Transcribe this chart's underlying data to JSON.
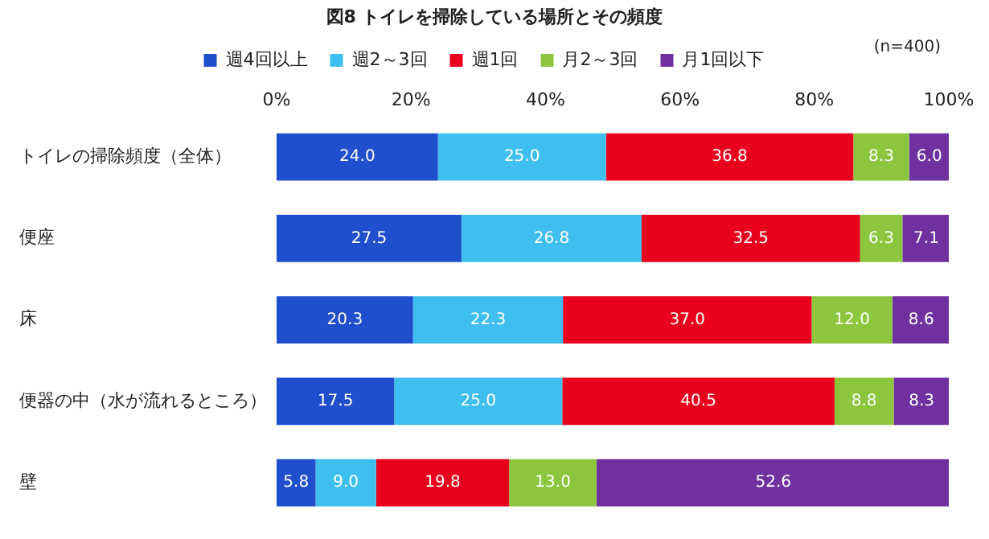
{
  "chart_data": {
    "type": "bar",
    "orientation": "horizontal",
    "stacked": true,
    "title": "図8 トイレを掃除している場所とその頻度",
    "annotations": [
      "(n=400)"
    ],
    "categories": [
      "トイレの掃除頻度（全体）",
      "便座",
      "床",
      "便器の中（水が流れるところ）",
      "壁"
    ],
    "series": [
      {
        "name": "週4回以上",
        "color": "#1f4fcc",
        "values": [
          24.0,
          27.5,
          20.3,
          17.5,
          5.8
        ],
        "value_labels": [
          "24.0",
          "27.5",
          "20.3",
          "17.5",
          "5.8"
        ]
      },
      {
        "name": "週2～3回",
        "color": "#3fbfef",
        "values": [
          25.0,
          26.8,
          22.3,
          25.0,
          9.0
        ],
        "value_labels": [
          "25.0",
          "26.8",
          "22.3",
          "25.0",
          "9.0"
        ]
      },
      {
        "name": "週1回",
        "color": "#e8001c",
        "values": [
          36.8,
          32.5,
          37.0,
          40.5,
          19.8
        ],
        "value_labels": [
          "36.8",
          "32.5",
          "37.0",
          "40.5",
          "19.8"
        ]
      },
      {
        "name": "月2～3回",
        "color": "#8cc63f",
        "values": [
          8.3,
          6.3,
          12.0,
          8.8,
          13.0
        ],
        "value_labels": [
          "8.3",
          "6.3",
          "12.0",
          "8.8",
          "13.0"
        ]
      },
      {
        "name": "月1回以下",
        "color": "#7030a0",
        "values": [
          6.0,
          7.1,
          8.6,
          8.3,
          52.6
        ],
        "value_labels": [
          "6.0",
          "7.1",
          "8.6",
          "8.3",
          "52.6"
        ]
      }
    ],
    "xlim": [
      0,
      100
    ],
    "xticks": [
      {
        "value": 0,
        "label": "0%"
      },
      {
        "value": 20,
        "label": "20%"
      },
      {
        "value": 40,
        "label": "40%"
      },
      {
        "value": 60,
        "label": "60%"
      },
      {
        "value": 80,
        "label": "80%"
      },
      {
        "value": 100,
        "label": "100%"
      }
    ],
    "grid": false,
    "legend": "top"
  }
}
